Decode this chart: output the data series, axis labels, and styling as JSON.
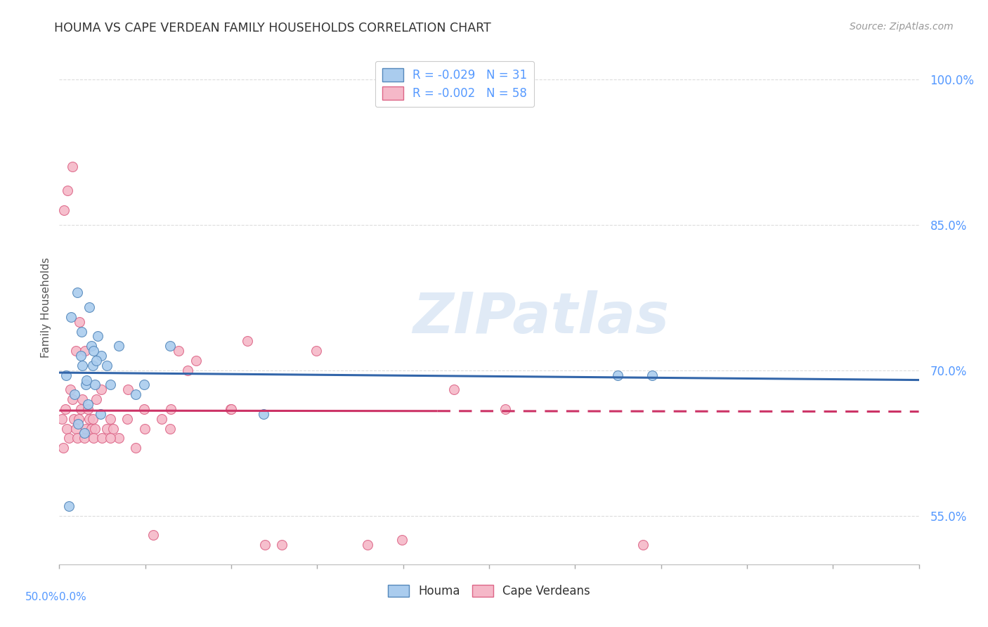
{
  "title": "HOUMA VS CAPE VERDEAN FAMILY HOUSEHOLDS CORRELATION CHART",
  "source": "Source: ZipAtlas.com",
  "ylabel": "Family Households",
  "xlim": [
    0.0,
    50.0
  ],
  "ylim": [
    50.0,
    103.0
  ],
  "yticks": [
    55.0,
    70.0,
    85.0,
    100.0
  ],
  "ytick_labels": [
    "55.0%",
    "70.0%",
    "85.0%",
    "100.0%"
  ],
  "houma_x": [
    0.4,
    0.7,
    0.9,
    1.1,
    1.25,
    1.35,
    1.45,
    1.55,
    1.65,
    1.75,
    1.85,
    1.95,
    2.05,
    2.25,
    2.45,
    2.75,
    2.95,
    3.45,
    4.45,
    4.95,
    6.45,
    11.9,
    32.5,
    34.5,
    1.05,
    1.28,
    2.15,
    2.38,
    0.55,
    1.58,
    1.98
  ],
  "houma_y": [
    69.5,
    75.5,
    67.5,
    64.5,
    71.5,
    70.5,
    63.5,
    68.5,
    66.5,
    76.5,
    72.5,
    70.5,
    68.5,
    73.5,
    71.5,
    70.5,
    68.5,
    72.5,
    67.5,
    68.5,
    72.5,
    65.5,
    69.5,
    69.5,
    78.0,
    74.0,
    71.0,
    65.5,
    56.0,
    69.0,
    72.0
  ],
  "cape_x": [
    0.15,
    0.25,
    0.35,
    0.45,
    0.55,
    0.65,
    0.75,
    0.85,
    0.95,
    1.05,
    1.15,
    1.25,
    1.35,
    1.45,
    1.55,
    1.65,
    1.75,
    1.85,
    1.95,
    2.05,
    2.15,
    2.45,
    2.75,
    2.95,
    3.15,
    3.45,
    3.95,
    4.45,
    4.95,
    5.45,
    5.95,
    6.45,
    6.95,
    7.45,
    7.95,
    9.95,
    10.95,
    11.95,
    12.95,
    14.95,
    17.95,
    19.95,
    22.95,
    25.95,
    33.95,
    0.28,
    0.48,
    0.78,
    0.98,
    1.18,
    1.48,
    1.98,
    2.48,
    2.98,
    3.98,
    4.98,
    6.48,
    9.98
  ],
  "cape_y": [
    65.0,
    62.0,
    66.0,
    64.0,
    63.0,
    68.0,
    67.0,
    65.0,
    64.0,
    63.0,
    65.0,
    66.0,
    67.0,
    63.0,
    64.0,
    66.0,
    65.0,
    64.0,
    65.0,
    64.0,
    67.0,
    68.0,
    64.0,
    65.0,
    64.0,
    63.0,
    65.0,
    62.0,
    66.0,
    53.0,
    65.0,
    64.0,
    72.0,
    70.0,
    71.0,
    66.0,
    73.0,
    52.0,
    52.0,
    72.0,
    52.0,
    52.5,
    68.0,
    66.0,
    52.0,
    86.5,
    88.5,
    91.0,
    72.0,
    75.0,
    72.0,
    63.0,
    63.0,
    63.0,
    68.0,
    64.0,
    66.0,
    66.0
  ],
  "houma_color": "#aaccee",
  "houma_edge_color": "#5588bb",
  "houma_line_color": "#3366aa",
  "cape_color": "#f5b8c8",
  "cape_edge_color": "#dd6688",
  "cape_line_color": "#cc3366",
  "houma_R": "-0.029",
  "houma_N": "31",
  "cape_R": "-0.002",
  "cape_N": "58",
  "houma_label": "Houma",
  "cape_label": "Cape Verdeans",
  "watermark": "ZIPatlas",
  "bg_color": "#ffffff",
  "grid_color": "#dddddd",
  "dash_start_x": 22.0
}
